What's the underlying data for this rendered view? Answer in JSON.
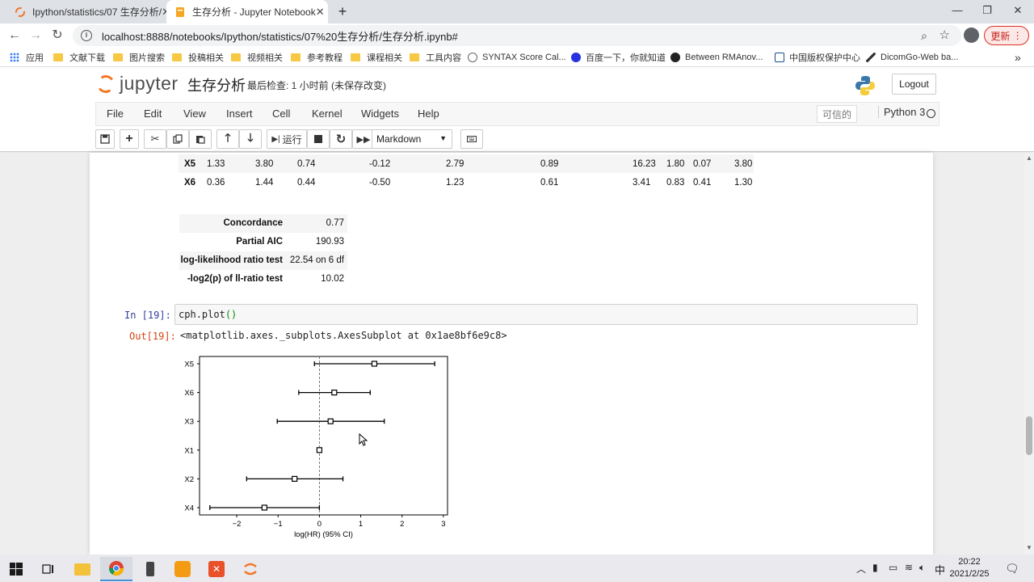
{
  "browser": {
    "tabs": [
      {
        "title": "Ipython/statistics/07 生存分析/",
        "active": false
      },
      {
        "title": "生存分析 - Jupyter Notebook",
        "active": true
      }
    ],
    "url": "localhost:8888/notebooks/Ipython/statistics/07%20生存分析/生存分析.ipynb#",
    "update_label": "更新",
    "bookmarks": [
      {
        "label": "应用",
        "icon": "apps-grid-icon"
      },
      {
        "label": "文献下载",
        "icon": "folder-icon"
      },
      {
        "label": "图片搜索",
        "icon": "folder-icon"
      },
      {
        "label": "投稿相关",
        "icon": "folder-icon"
      },
      {
        "label": "视频相关",
        "icon": "folder-icon"
      },
      {
        "label": "参考教程",
        "icon": "folder-icon"
      },
      {
        "label": "课程相关",
        "icon": "folder-icon"
      },
      {
        "label": "工具内容",
        "icon": "folder-icon"
      },
      {
        "label": "SYNTAX Score Cal...",
        "icon": "globe-icon"
      },
      {
        "label": "百度一下，你就知道",
        "icon": "baidu-icon"
      },
      {
        "label": "Between RMAnov...",
        "icon": "github-icon"
      },
      {
        "label": "中国版权保护中心",
        "icon": "copyright-icon"
      },
      {
        "label": "DicomGo-Web ba...",
        "icon": "pen-icon"
      }
    ],
    "bookmarks_more": "»"
  },
  "jupyter": {
    "logo_text": "jupyter",
    "notebook_name": "生存分析",
    "checkpoint": "最后检查: 1 小时前  (未保存改变)",
    "logout_label": "Logout",
    "menus": [
      "File",
      "Edit",
      "View",
      "Insert",
      "Cell",
      "Kernel",
      "Widgets",
      "Help"
    ],
    "trusted_label": "可信的",
    "kernel_name": "Python 3",
    "run_label": "运行",
    "cell_type": "Markdown"
  },
  "coef_rows": [
    {
      "name": "X5",
      "cells": [
        "1.33",
        "3.80",
        "0.74",
        "-0.12",
        "2.79",
        "0.89",
        "16.23",
        "1.80",
        "0.07",
        "3.80"
      ]
    },
    {
      "name": "X6",
      "cells": [
        "0.36",
        "1.44",
        "0.44",
        "-0.50",
        "1.23",
        "0.61",
        "3.41",
        "0.83",
        "0.41",
        "1.30"
      ]
    }
  ],
  "summary": [
    {
      "key": "Concordance",
      "value": "0.77"
    },
    {
      "key": "Partial AIC",
      "value": "190.93"
    },
    {
      "key": "log-likelihood ratio test",
      "value": "22.54 on 6 df"
    },
    {
      "key": "-log2(p) of ll-ratio test",
      "value": "10.02"
    }
  ],
  "cell": {
    "in_prompt": "In  [19]:",
    "code_obj": "cph",
    "code_dot": ".",
    "code_fn": "plot",
    "code_paren": "()",
    "out_prompt": "Out[19]:",
    "output_text": "<matplotlib.axes._subplots.AxesSubplot at 0x1ae8bf6e9c8>"
  },
  "chart_data": {
    "type": "forest",
    "title": "",
    "xlabel": "log(HR) (95% CI)",
    "ylabel": "",
    "xlim": [
      -2.9,
      3.1
    ],
    "xticks": [
      -2,
      -1,
      0,
      1,
      2,
      3
    ],
    "xtick_labels": [
      "−2",
      "−1",
      "0",
      "1",
      "2",
      "3"
    ],
    "reference_line": 0,
    "grid": false,
    "categories": [
      "X5",
      "X6",
      "X3",
      "X1",
      "X2",
      "X4"
    ],
    "estimates": [
      1.33,
      0.36,
      0.27,
      0.0,
      -0.6,
      -1.33
    ],
    "lower": [
      -0.12,
      -0.5,
      -1.02,
      0.0,
      -1.76,
      -2.65
    ],
    "upper": [
      2.79,
      1.23,
      1.57,
      0.0,
      0.57,
      0.0
    ]
  },
  "taskbar": {
    "ime": "中",
    "time": "20:22",
    "date": "2021/2/25"
  },
  "colors": {
    "jupyter_orange": "#f37726",
    "in_prompt": "#303f9f",
    "out_prompt": "#d84315",
    "update_red": "#c5221f"
  }
}
